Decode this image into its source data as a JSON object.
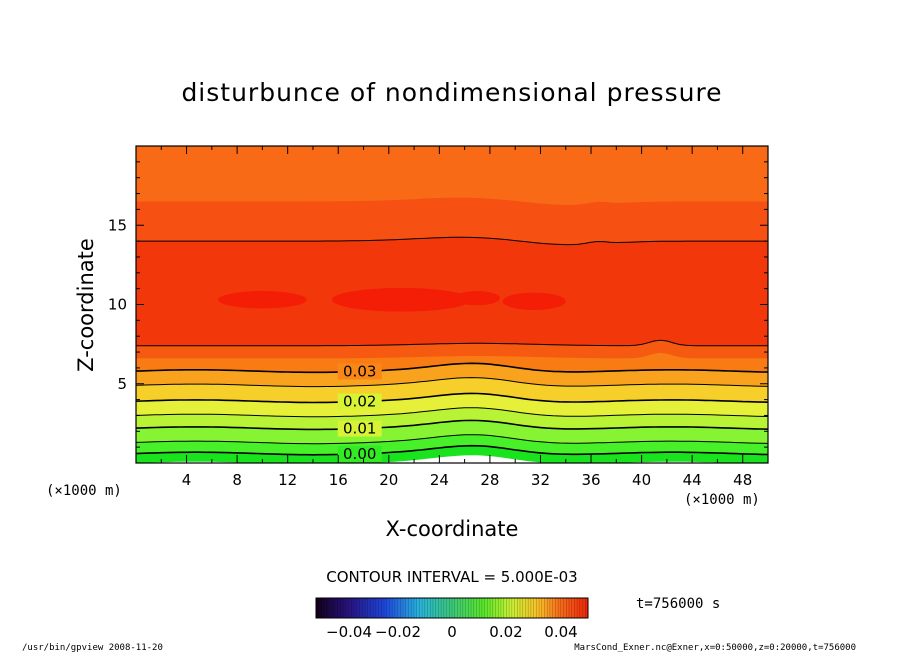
{
  "chart_data": {
    "type": "contour",
    "title": "disturbunce of nondimensional pressure",
    "xlabel": "X-coordinate",
    "ylabel": "Z-coordinate",
    "x_unit": "(×1000 m)",
    "y_unit": "(×1000 m)",
    "xlim": [
      0,
      50
    ],
    "ylim": [
      0,
      20
    ],
    "x_ticks": [
      4,
      8,
      12,
      16,
      20,
      24,
      28,
      32,
      36,
      40,
      44,
      48
    ],
    "y_ticks": [
      5,
      10,
      15
    ],
    "contour_labels": [
      {
        "text": "0.03",
        "x": 17.7,
        "z": 5.8
      },
      {
        "text": "0.02",
        "x": 17.7,
        "z": 3.9
      },
      {
        "text": "0.01",
        "x": 17.7,
        "z": 2.2
      },
      {
        "text": "0.00",
        "x": 17.7,
        "z": 0.6
      }
    ],
    "contour_interval": "CONTOUR INTERVAL = 5.000E-03",
    "colorbar_ticks": [
      "−0.04",
      "−0.02",
      "0",
      "0.02",
      "0.04"
    ],
    "colorbar_range": [
      -0.05,
      0.05
    ],
    "time_label": "t=756000 s",
    "levels_z": [
      0.6,
      1.3,
      2.2,
      3.0,
      3.9,
      4.9,
      5.8,
      7.4,
      14.0
    ]
  },
  "footer": {
    "left": "/usr/bin/gpview   2008-11-20",
    "right": "MarsCond_Exner.nc@Exner,x=0:50000,z=0:20000,t=756000"
  }
}
